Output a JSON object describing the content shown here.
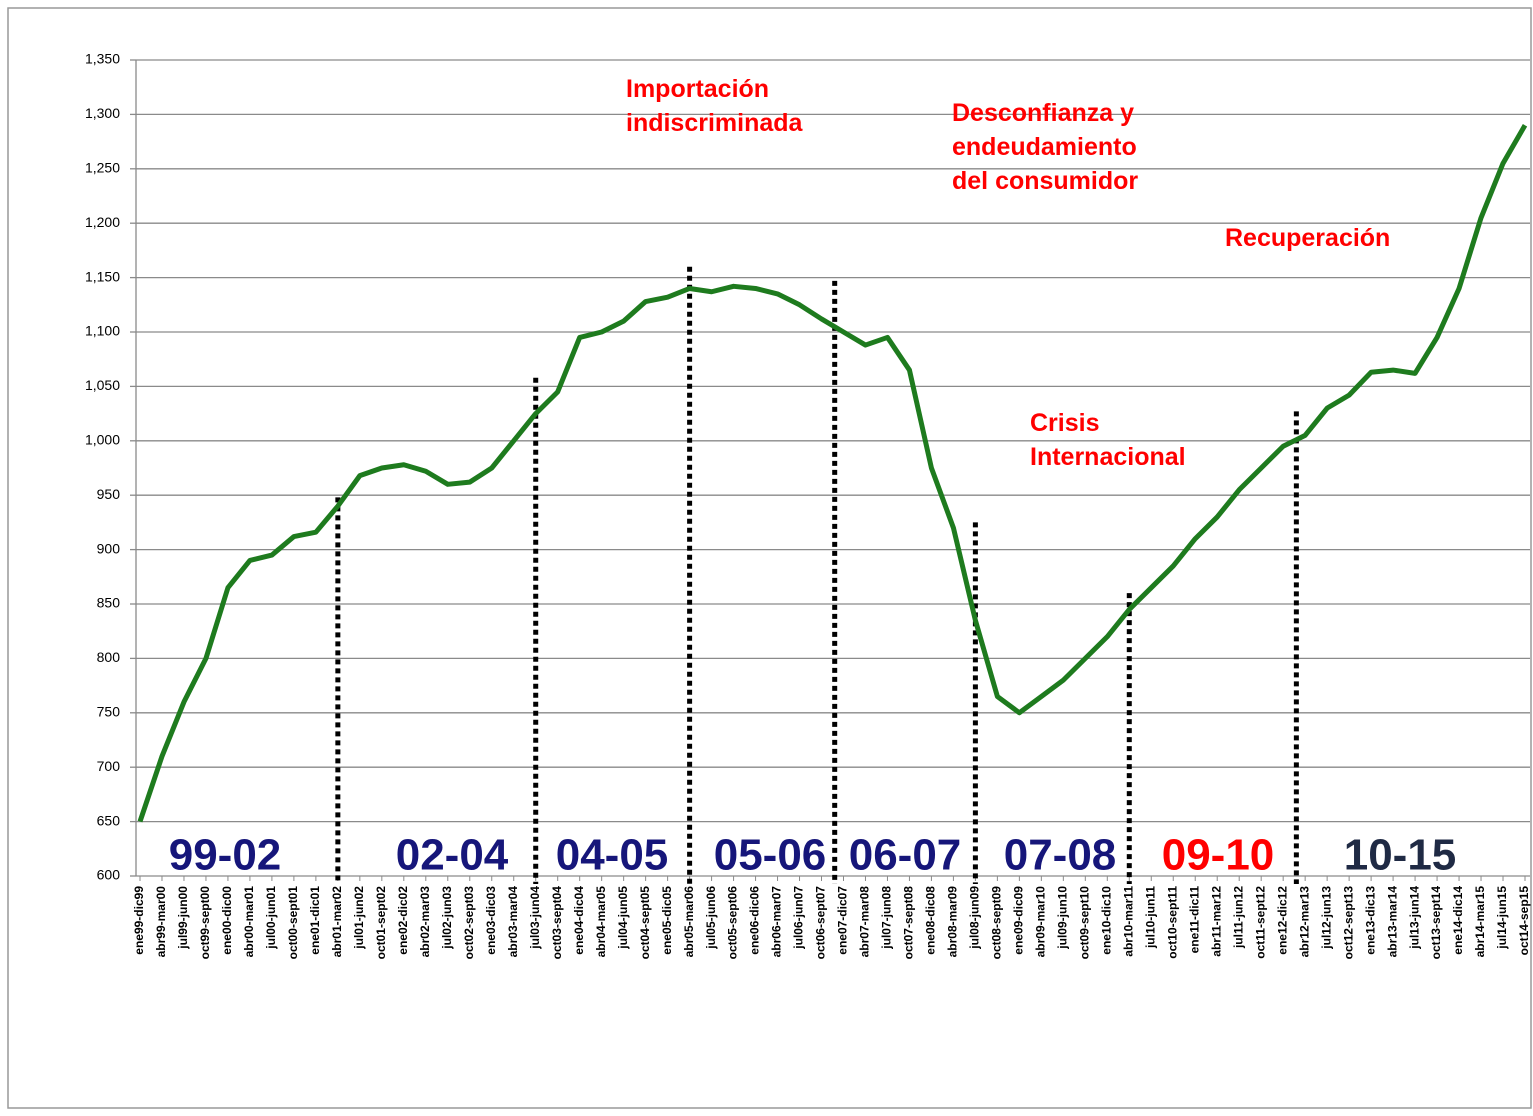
{
  "chart_data": {
    "type": "line",
    "categories": [
      "ene99-dic99",
      "abr99-mar00",
      "jul99-jun00",
      "oct99-sept00",
      "ene00-dic00",
      "abr00-mar01",
      "jul00-jun01",
      "oct00-sept01",
      "ene01-dic01",
      "abr01-mar02",
      "jul01-jun02",
      "oct01-sept02",
      "ene02-dic02",
      "abr02-mar03",
      "jul02-jun03",
      "oct02-sept03",
      "ene03-dic03",
      "abr03-mar04",
      "jul03-jun04",
      "oct03-sept04",
      "ene04-dic04",
      "abr04-mar05",
      "jul04-jun05",
      "oct04-sept05",
      "ene05-dic05",
      "abr05-mar06",
      "jul05-jun06",
      "oct05-sept06",
      "ene06-dic06",
      "abr06-mar07",
      "jul06-jun07",
      "oct06-sept07",
      "ene07-dic07",
      "abr07-mar08",
      "jul07-jun08",
      "oct07-sept08",
      "ene08-dic08",
      "abr08-mar09",
      "jul08-jun09",
      "oct08-sept09",
      "ene09-dic09",
      "abr09-mar10",
      "jul09-jun10",
      "oct09-sept10",
      "ene10-dic10",
      "abr10-mar11",
      "jul10-jun11",
      "oct10-sept11",
      "ene11-dic11",
      "abr11-mar12",
      "jul11-jun12",
      "oct11-sept12",
      "ene12-dic12",
      "abr12-mar13",
      "jul12-jun13",
      "oct12-sept13",
      "ene13-dic13",
      "abr13-mar14",
      "jul13-jun14",
      "oct13-sept14",
      "ene14-dic14",
      "abr14-mar15",
      "jul14-jun15",
      "oct14-sep15"
    ],
    "values": [
      650,
      710,
      760,
      800,
      865,
      890,
      895,
      912,
      916,
      940,
      968,
      975,
      978,
      972,
      960,
      962,
      975,
      1000,
      1025,
      1045,
      1095,
      1100,
      1110,
      1128,
      1132,
      1140,
      1137,
      1142,
      1140,
      1135,
      1125,
      1112,
      1100,
      1088,
      1095,
      1065,
      975,
      920,
      835,
      765,
      750,
      765,
      780,
      800,
      820,
      845,
      865,
      885,
      910,
      930,
      955,
      975,
      995,
      1005,
      1030,
      1042,
      1063,
      1065,
      1062,
      1095,
      1140,
      1205,
      1255,
      1290
    ],
    "color": "#1e7b1e",
    "ylim": [
      600,
      1350
    ],
    "yticks": [
      600,
      650,
      700,
      750,
      800,
      850,
      900,
      950,
      {
        "value": 1000,
        "label": "1,000"
      },
      {
        "value": 1050,
        "label": "1,050"
      },
      {
        "value": 1100,
        "label": "1,100"
      },
      {
        "value": 1150,
        "label": "1,150"
      },
      {
        "value": 1200,
        "label": "1,200"
      },
      {
        "value": 1250,
        "label": "1,250"
      },
      {
        "value": 1300,
        "label": "1,300"
      },
      {
        "value": 1350,
        "label": "1,350"
      }
    ],
    "grid": true,
    "dividers": [
      {
        "index": 9,
        "top": 948
      },
      {
        "index": 18,
        "top": 1058
      },
      {
        "index": 25,
        "top": 1160
      },
      {
        "index": 31.6,
        "top": 1147
      },
      {
        "index": 38,
        "top": 925
      },
      {
        "index": 45,
        "top": 860
      },
      {
        "index": 52.6,
        "top": 1027
      }
    ],
    "periods": [
      {
        "text": "99-02",
        "color": "#16167a"
      },
      {
        "text": "02-04",
        "color": "#16167a"
      },
      {
        "text": "04-05",
        "color": "#16167a"
      },
      {
        "text": "05-06",
        "color": "#16167a"
      },
      {
        "text": "06-07",
        "color": "#16167a"
      },
      {
        "text": "07-08",
        "color": "#16167a"
      },
      {
        "text": "09-10",
        "color": "#ff0000"
      },
      {
        "text": "10-15",
        "color": "#1f2a44"
      }
    ],
    "annotations": [
      {
        "lines": [
          "Importación",
          "indiscriminada"
        ]
      },
      {
        "lines": [
          "Desconfianza y",
          "endeudamiento",
          "del consumidor"
        ]
      },
      {
        "lines": [
          "Recuperación"
        ]
      },
      {
        "lines": [
          "Crisis",
          "Internacional"
        ]
      }
    ]
  }
}
